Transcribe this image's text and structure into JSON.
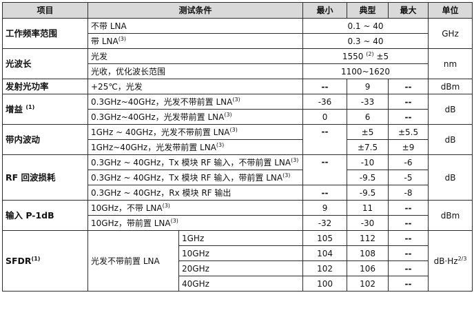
{
  "headers": {
    "item": "项目",
    "cond": "测试条件",
    "min": "最小",
    "typ": "典型",
    "max": "最大",
    "unit": "单位"
  },
  "freq": {
    "item": "工作频率范围",
    "unit": "GHz",
    "r1": {
      "cond": "不带 LNA",
      "typ": "0.1 ~ 40"
    },
    "r2": {
      "cond": "带 LNA",
      "sup": "(3)",
      "typ": "0.3 ~ 40"
    }
  },
  "wl": {
    "item": "光波长",
    "unit": "nm",
    "r1": {
      "cond": "光发",
      "typ": "1550",
      "typ_sup": "(2)",
      "typ_suffix": " ±5"
    },
    "r2": {
      "cond": "光收，优化波长范围",
      "typ": "1100~1620"
    }
  },
  "power": {
    "item": "发射光功率",
    "cond": "+25℃，光发",
    "min": "--",
    "typ": "9",
    "max": "--",
    "unit": "dBm"
  },
  "gain": {
    "item": "增益",
    "sup": "(1)",
    "unit": "dB",
    "r1": {
      "cond": "0.3GHz~40GHz，光发不带前置 LNA",
      "sup": "(3)",
      "min": "-36",
      "typ": "-33",
      "max": "--"
    },
    "r2": {
      "cond": "0.3GHz~40GHz，光发带前置 LNA",
      "sup": "(3)",
      "min": "0",
      "typ": "6",
      "max": "--"
    }
  },
  "ripple": {
    "item": "带内波动",
    "unit": "dB",
    "r1": {
      "cond": "1GHz ~ 40GHz，光发不带前置 LNA",
      "sup": "(3)",
      "min": "--",
      "typ": "±5",
      "max": "±5.5"
    },
    "r2": {
      "cond": "1GHz~40GHz，光发带前置 LNA",
      "sup": "(3)",
      "min": "",
      "typ": "±7.5",
      "max": "±9"
    }
  },
  "rl": {
    "item": "RF 回波损耗",
    "unit": "dB",
    "r1": {
      "cond": "0.3GHz ~ 40GHz，Tx 模块 RF 输入，不带前置 LNA",
      "sup": "(3)",
      "min": "--",
      "typ": "-10",
      "max": "-6"
    },
    "r2": {
      "cond": "0.3GHz ~ 40GHz，Tx 模块 RF 输入，带前置 LNA",
      "sup": "(3)",
      "min": "",
      "typ": "-9.5",
      "max": "-5"
    },
    "r3": {
      "cond": "0.3GHz ~ 40GHz，Rx 模块 RF 输出",
      "min": "--",
      "typ": "-9.5",
      "max": "-8"
    }
  },
  "p1db": {
    "item": "输入 P-1dB",
    "unit": "dBm",
    "r1": {
      "cond": "10GHz，不带 LNA",
      "sup": "(3)",
      "min": "9",
      "typ": "11",
      "max": "--"
    },
    "r2": {
      "cond": "10GHz，带前置 LNA",
      "sup": "(3)",
      "min": "-32",
      "typ": "-30",
      "max": "--"
    }
  },
  "sfdr": {
    "item": "SFDR",
    "sup": "(1)",
    "cond": "光发不带前置 LNA",
    "unit": "dB·Hz",
    "unit_sup": "2/3",
    "rows": [
      {
        "freq": "1GHz",
        "min": "105",
        "typ": "112",
        "max": "--"
      },
      {
        "freq": "10GHz",
        "min": "104",
        "typ": "108",
        "max": "--"
      },
      {
        "freq": "20GHz",
        "min": "102",
        "typ": "106",
        "max": "--"
      },
      {
        "freq": "40GHz",
        "min": "100",
        "typ": "102",
        "max": "--"
      }
    ]
  }
}
